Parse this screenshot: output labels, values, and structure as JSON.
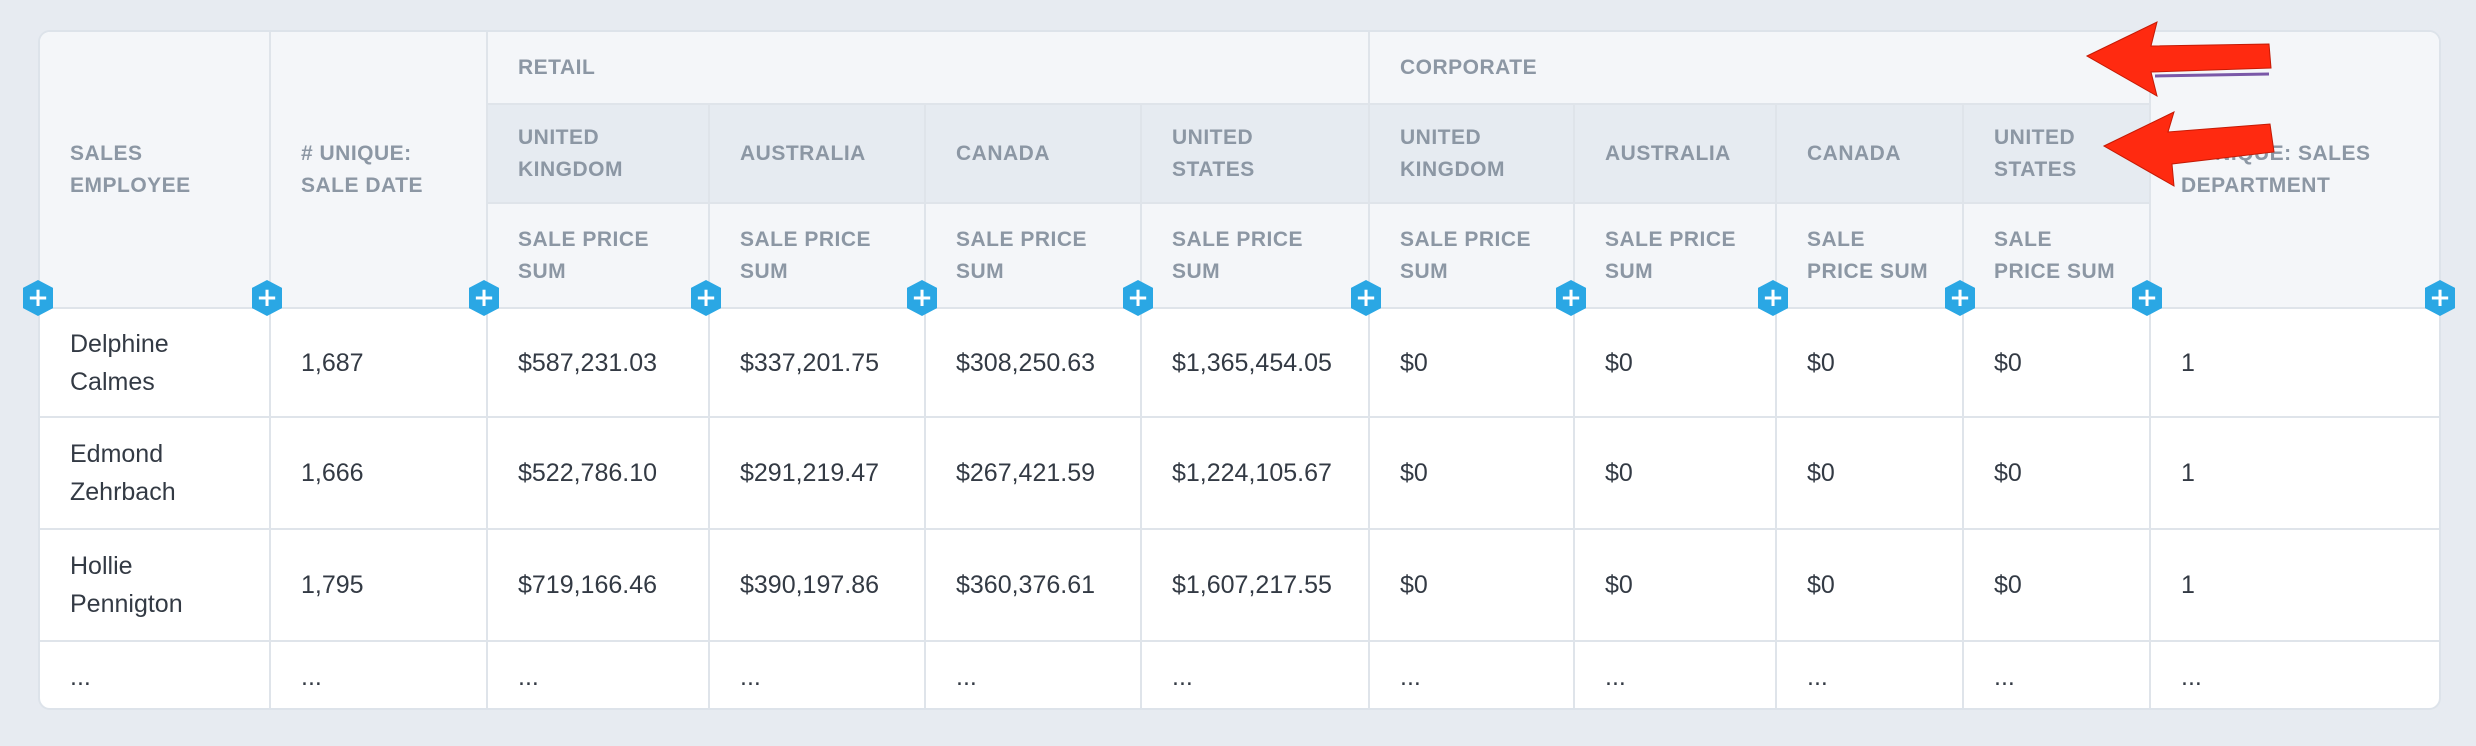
{
  "headers": {
    "sales_employee": "SALES EMPLOYEE",
    "unique_sale_date": "# UNIQUE: SALE DATE",
    "unique_sales_department": "# UNIQUE: SALES DEPARTMENT",
    "groups": [
      "RETAIL",
      "CORPORATE"
    ],
    "countries": [
      "UNITED KINGDOM",
      "AUSTRALIA",
      "CANADA",
      "UNITED STATES",
      "UNITED KINGDOM",
      "AUSTRALIA",
      "CANADA",
      "UNITED STATES"
    ],
    "measure": "SALE PRICE SUM"
  },
  "rows": [
    [
      "Delphine Calmes",
      "1,687",
      "$587,231.03",
      "$337,201.75",
      "$308,250.63",
      "$1,365,454.05",
      "$0",
      "$0",
      "$0",
      "$0",
      "1"
    ],
    [
      "Edmond Zehrbach",
      "1,666",
      "$522,786.10",
      "$291,219.47",
      "$267,421.59",
      "$1,224,105.67",
      "$0",
      "$0",
      "$0",
      "$0",
      "1"
    ],
    [
      "Hollie Pennigton",
      "1,795",
      "$719,166.46",
      "$390,197.86",
      "$360,376.61",
      "$1,607,217.55",
      "$0",
      "$0",
      "$0",
      "$0",
      "1"
    ],
    [
      "...",
      "...",
      "...",
      "...",
      "...",
      "...",
      "...",
      "...",
      "...",
      "...",
      "..."
    ]
  ],
  "icons": {
    "add_column": "plus-hexagon-icon",
    "annotation": "red-arrow-icon"
  },
  "colors": {
    "accent": "#2aa7e4",
    "arrow": "#ff2a10",
    "header_text": "#8c97a4"
  },
  "add_symbol": "+"
}
